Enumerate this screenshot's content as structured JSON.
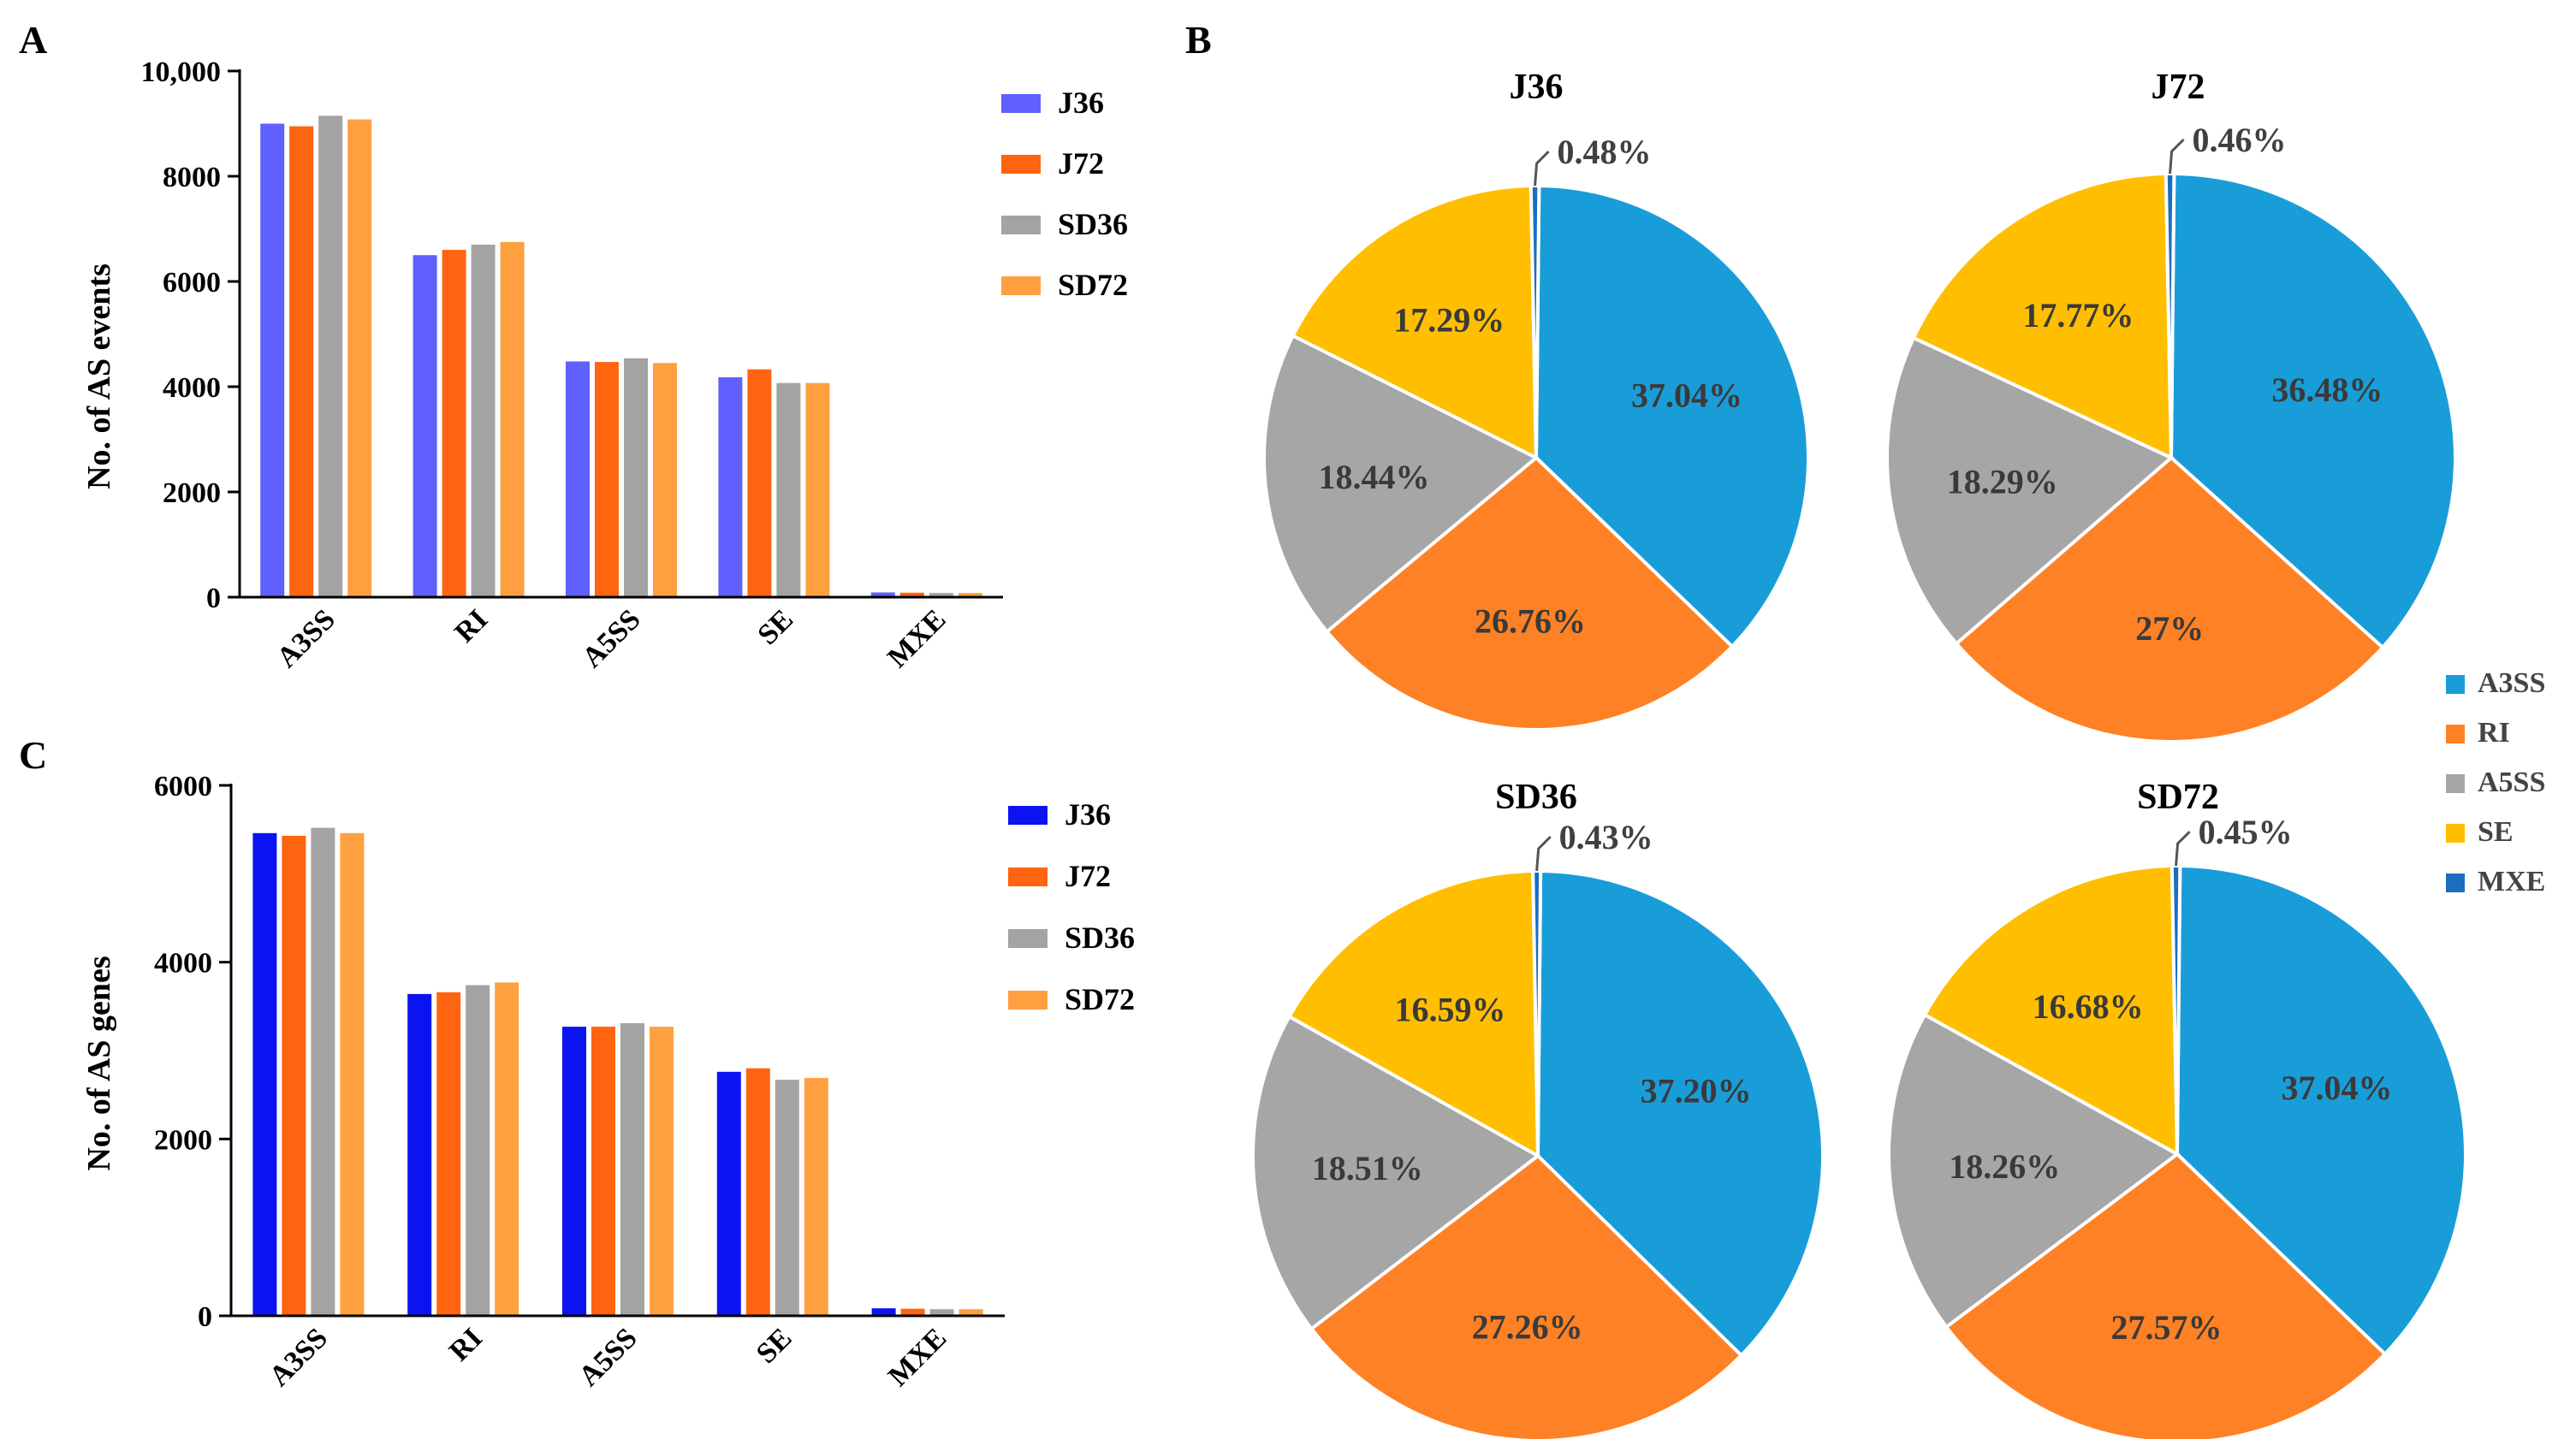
{
  "panels": {
    "A": {
      "letter": "A"
    },
    "B": {
      "letter": "B"
    },
    "C": {
      "letter": "C"
    }
  },
  "colors": {
    "J36_A": "#6060ff",
    "J36_C": "#0b14f0",
    "J72": "#ff6410",
    "SD36": "#a3a3a3",
    "SD72": "#ffa040",
    "A3SS": "#199dd9",
    "RI": "#ff8125",
    "A5SS": "#a6a6a6",
    "SE": "#ffbf00",
    "MXE": "#1c6dc0"
  },
  "chart_data": [
    {
      "panel": "A",
      "type": "bar",
      "ylabel": "No. of AS events",
      "ylim": [
        0,
        10000
      ],
      "yticks": [
        "0",
        "2000",
        "4000",
        "6000",
        "8000",
        "10,000"
      ],
      "categories": [
        "A3SS",
        "RI",
        "A5SS",
        "SE",
        "MXE"
      ],
      "series": [
        {
          "name": "J36",
          "values": [
            9000,
            6500,
            4480,
            4180,
            90
          ]
        },
        {
          "name": "J72",
          "values": [
            8950,
            6600,
            4470,
            4330,
            85
          ]
        },
        {
          "name": "SD36",
          "values": [
            9150,
            6700,
            4540,
            4070,
            80
          ]
        },
        {
          "name": "SD72",
          "values": [
            9080,
            6750,
            4450,
            4070,
            80
          ]
        }
      ],
      "legend": "right"
    },
    {
      "panel": "C",
      "type": "bar",
      "ylabel": "No. of AS genes",
      "ylim": [
        0,
        6000
      ],
      "yticks": [
        "0",
        "2000",
        "4000",
        "6000"
      ],
      "categories": [
        "A3SS",
        "RI",
        "A5SS",
        "SE",
        "MXE"
      ],
      "series": [
        {
          "name": "J36",
          "values": [
            5460,
            3640,
            3270,
            2760,
            85
          ]
        },
        {
          "name": "J72",
          "values": [
            5430,
            3660,
            3270,
            2800,
            80
          ]
        },
        {
          "name": "SD36",
          "values": [
            5520,
            3740,
            3310,
            2670,
            75
          ]
        },
        {
          "name": "SD72",
          "values": [
            5460,
            3770,
            3270,
            2690,
            75
          ]
        }
      ],
      "legend": "right"
    },
    {
      "panel": "B",
      "type": "pie",
      "legend": [
        "A3SS",
        "RI",
        "A5SS",
        "SE",
        "MXE"
      ],
      "pies": [
        {
          "title": "J36",
          "values": [
            37.04,
            26.76,
            18.44,
            17.29,
            0.48
          ],
          "labels": [
            "37.04%",
            "26.76%",
            "18.44%",
            "17.29%",
            "0.48%"
          ]
        },
        {
          "title": "J72",
          "values": [
            36.48,
            27,
            18.29,
            17.77,
            0.46
          ],
          "labels": [
            "36.48%",
            "27%",
            "18.29%",
            "17.77%",
            "0.46%"
          ]
        },
        {
          "title": "SD36",
          "values": [
            37.2,
            27.26,
            18.51,
            16.59,
            0.43
          ],
          "labels": [
            "37.20%",
            "27.26%",
            "18.51%",
            "16.59%",
            "0.43%"
          ]
        },
        {
          "title": "SD72",
          "values": [
            37.04,
            27.57,
            18.26,
            16.68,
            0.45
          ],
          "labels": [
            "37.04%",
            "27.57%",
            "18.26%",
            "16.68%",
            "0.45%"
          ]
        }
      ]
    }
  ]
}
